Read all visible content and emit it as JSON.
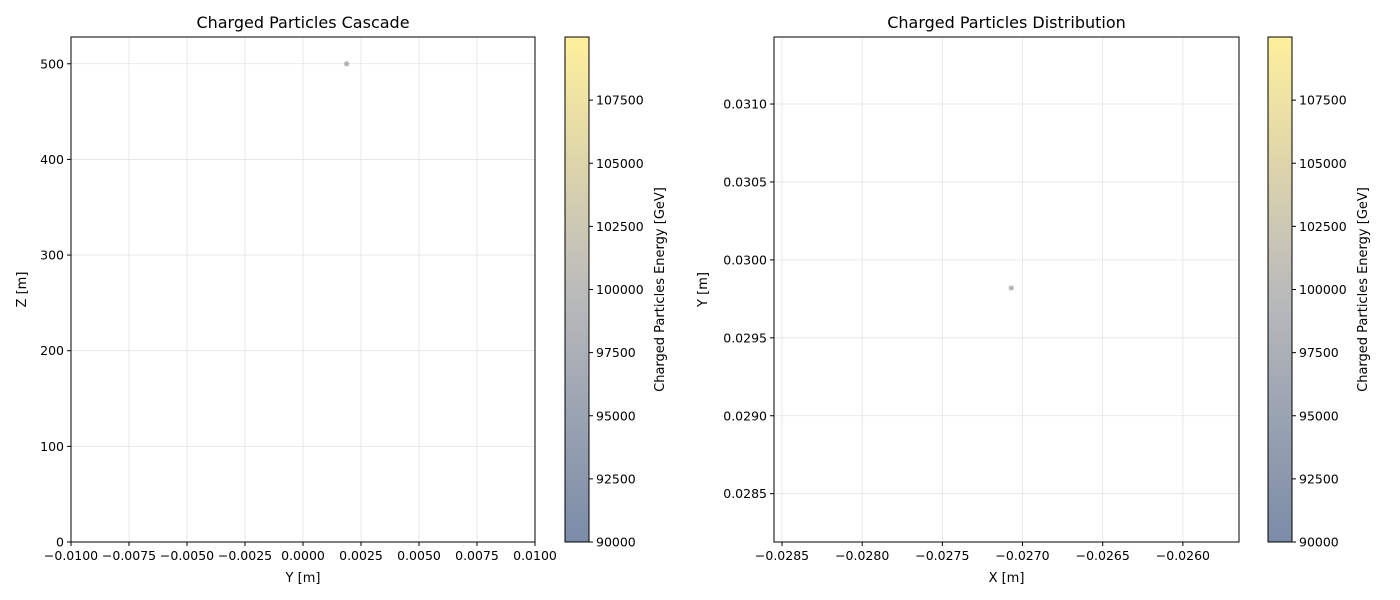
{
  "chart_data": [
    {
      "type": "scatter",
      "title": "Charged Particles Cascade",
      "xlabel": "Y [m]",
      "ylabel": "Z [m]",
      "xlim": [
        -0.01,
        0.01
      ],
      "ylim": [
        0,
        528
      ],
      "xticks": [
        -0.01,
        -0.0075,
        -0.005,
        -0.0025,
        0.0,
        0.0025,
        0.005,
        0.0075,
        0.01
      ],
      "xtick_labels": [
        "−0.0100",
        "−0.0075",
        "−0.0050",
        "−0.0025",
        "0.0000",
        "0.0025",
        "0.0050",
        "0.0075",
        "0.0100"
      ],
      "yticks": [
        0,
        100,
        200,
        300,
        400,
        500
      ],
      "ytick_labels": [
        "0",
        "100",
        "200",
        "300",
        "400",
        "500"
      ],
      "grid": true,
      "points": [
        {
          "x": 0.00188,
          "y": 500,
          "energy": 100000
        }
      ],
      "colorbar": {
        "label": "Charged Particles Energy [GeV]",
        "range": [
          90000,
          110000
        ],
        "ticks": [
          90000,
          92500,
          95000,
          97500,
          100000,
          102500,
          105000,
          107500
        ],
        "tick_labels": [
          "90000",
          "92500",
          "95000",
          "97500",
          "100000",
          "102500",
          "105000",
          "107500"
        ],
        "colormap": [
          "#7b8ca8",
          "#bbbbbb",
          "#fff09c"
        ]
      }
    },
    {
      "type": "scatter",
      "title": "Charged Particles Distribution",
      "xlabel": "X [m]",
      "ylabel": "Y [m]",
      "xlim": [
        -0.02855,
        -0.02565
      ],
      "ylim": [
        0.02819,
        0.03143
      ],
      "xticks": [
        -0.0285,
        -0.028,
        -0.0275,
        -0.027,
        -0.0265,
        -0.026
      ],
      "xtick_labels": [
        "−0.0285",
        "−0.0280",
        "−0.0275",
        "−0.0270",
        "−0.0265",
        "−0.0260"
      ],
      "yticks": [
        0.0285,
        0.029,
        0.0295,
        0.03,
        0.0305,
        0.031
      ],
      "ytick_labels": [
        "0.0285",
        "0.0290",
        "0.0295",
        "0.0300",
        "0.0305",
        "0.0310"
      ],
      "grid": true,
      "points": [
        {
          "x": -0.02707,
          "y": 0.02982,
          "energy": 100000
        }
      ],
      "colorbar": {
        "label": "Charged Particles Energy [GeV]",
        "range": [
          90000,
          110000
        ],
        "ticks": [
          90000,
          92500,
          95000,
          97500,
          100000,
          102500,
          105000,
          107500
        ],
        "tick_labels": [
          "90000",
          "92500",
          "95000",
          "97500",
          "100000",
          "102500",
          "105000",
          "107500"
        ],
        "colormap": [
          "#7b8ca8",
          "#bbbbbb",
          "#fff09c"
        ]
      }
    }
  ]
}
